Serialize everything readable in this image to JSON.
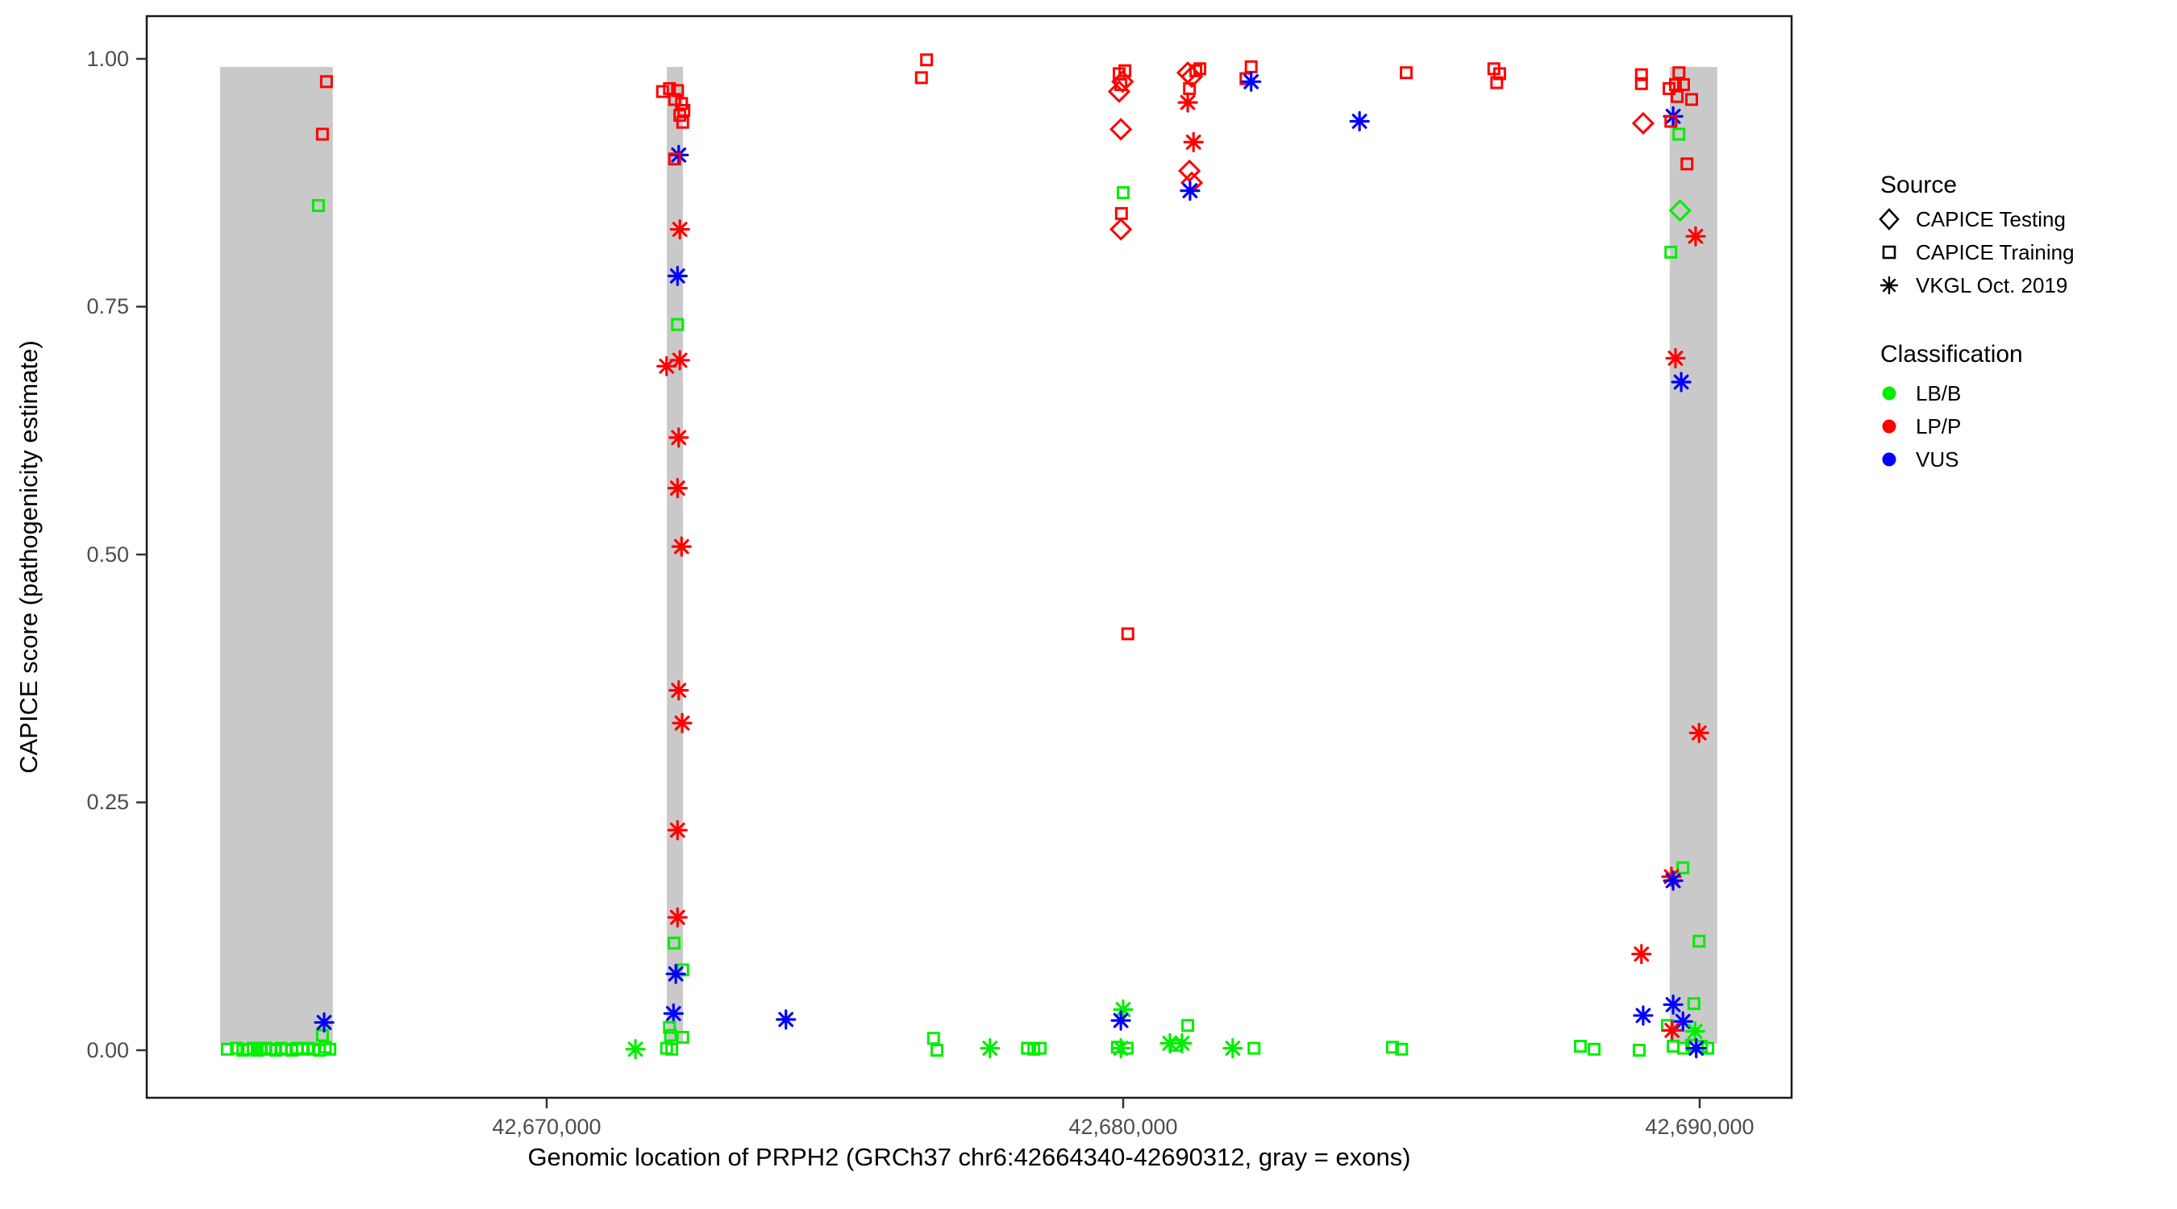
{
  "figure": {
    "y_axis": {
      "title": "CAPICE score (pathogenicity estimate)",
      "ticks": [
        "1.00",
        "0.75",
        "0.50",
        "0.25",
        "0.00"
      ],
      "tick_values": [
        1.0,
        0.75,
        0.5,
        0.25,
        0.0
      ]
    },
    "x_axis": {
      "title": "Genomic location of PRPH2 (GRCh37 chr6:42664340-42690312, gray = exons)",
      "ticks": [
        "42,670,000",
        "42,680,000",
        "42,690,000"
      ],
      "tick_values": [
        42670000,
        42680000,
        42690000
      ]
    },
    "legend": {
      "source_title": "Source",
      "source_items": [
        {
          "label": "CAPICE Testing",
          "shape": "diamond"
        },
        {
          "label": "CAPICE Training",
          "shape": "square"
        },
        {
          "label": "VKGL Oct. 2019",
          "shape": "asterisk"
        }
      ],
      "classification_title": "Classification",
      "classification_items": [
        {
          "label": "LB/B",
          "color": "#00EE00"
        },
        {
          "label": "LP/P",
          "color": "#FF0000"
        },
        {
          "label": "VUS",
          "color": "#0000FF"
        }
      ]
    }
  },
  "chart_data": {
    "type": "scatter",
    "xlabel": "Genomic location of PRPH2 (GRCh37 chr6:42664340-42690312, gray = exons)",
    "ylabel": "CAPICE score (pathogenicity estimate)",
    "xlim": [
      42663060,
      42691600
    ],
    "ylim": [
      -0.05,
      1.05
    ],
    "grid": false,
    "legend_position": "right",
    "shape_map": {
      "testing": "diamond",
      "training": "square",
      "vkgl": "asterisk"
    },
    "shape_labels": {
      "testing": "CAPICE Testing",
      "training": "CAPICE Training",
      "vkgl": "VKGL Oct. 2019"
    },
    "color_map": {
      "LB/B": "#00EE00",
      "LP/P": "#FF0000",
      "VUS": "#0000FF"
    },
    "exon_color": "#C9C9C9",
    "exons_bp": [
      [
        42664335,
        42666290
      ],
      [
        42672085,
        42672365
      ],
      [
        42689480,
        42690305
      ]
    ],
    "points_format": [
      "source",
      "classification",
      "position_bp",
      "capice_score"
    ],
    "points": [
      [
        "training",
        "LB/B",
        42664460,
        0.001
      ],
      [
        "training",
        "LB/B",
        42664620,
        0.002
      ],
      [
        "training",
        "LB/B",
        42664730,
        0.0
      ],
      [
        "training",
        "LB/B",
        42664830,
        0.001
      ],
      [
        "training",
        "LB/B",
        42664910,
        0.002
      ],
      [
        "training",
        "LB/B",
        42664980,
        0.0
      ],
      [
        "training",
        "LB/B",
        42665050,
        0.001
      ],
      [
        "training",
        "LB/B",
        42665130,
        0.002
      ],
      [
        "training",
        "LB/B",
        42665220,
        0.001
      ],
      [
        "training",
        "LB/B",
        42665300,
        0.0
      ],
      [
        "training",
        "LB/B",
        42665390,
        0.002
      ],
      [
        "training",
        "LB/B",
        42665470,
        0.001
      ],
      [
        "training",
        "LB/B",
        42665580,
        0.0
      ],
      [
        "training",
        "LB/B",
        42665670,
        0.002
      ],
      [
        "training",
        "LB/B",
        42665760,
        0.001
      ],
      [
        "training",
        "LB/B",
        42665860,
        0.002
      ],
      [
        "training",
        "LB/B",
        42665960,
        0.001
      ],
      [
        "training",
        "LB/B",
        42666060,
        0.0
      ],
      [
        "training",
        "LB/B",
        42666160,
        0.003
      ],
      [
        "training",
        "LB/B",
        42666240,
        0.001
      ],
      [
        "training",
        "LP/P",
        42666180,
        0.977
      ],
      [
        "training",
        "LP/P",
        42666110,
        0.924
      ],
      [
        "training",
        "LB/B",
        42666040,
        0.852
      ],
      [
        "training",
        "LB/B",
        42666110,
        0.015
      ],
      [
        "vkgl",
        "VUS",
        42666140,
        0.028
      ],
      [
        "vkgl",
        "LB/B",
        42671540,
        0.001
      ],
      [
        "training",
        "LP/P",
        42672130,
        0.97
      ],
      [
        "training",
        "LP/P",
        42672010,
        0.967
      ],
      [
        "training",
        "LP/P",
        42672270,
        0.968
      ],
      [
        "training",
        "LP/P",
        42672220,
        0.959
      ],
      [
        "training",
        "LP/P",
        42672340,
        0.955
      ],
      [
        "training",
        "LP/P",
        42672380,
        0.948
      ],
      [
        "training",
        "LP/P",
        42672310,
        0.943
      ],
      [
        "training",
        "LP/P",
        42672360,
        0.936
      ],
      [
        "vkgl",
        "VUS",
        42672290,
        0.903
      ],
      [
        "training",
        "LP/P",
        42672220,
        0.899
      ],
      [
        "vkgl",
        "LP/P",
        42672310,
        0.828
      ],
      [
        "vkgl",
        "VUS",
        42672270,
        0.781
      ],
      [
        "training",
        "LB/B",
        42672270,
        0.732
      ],
      [
        "vkgl",
        "LP/P",
        42672310,
        0.696
      ],
      [
        "vkgl",
        "LP/P",
        42672080,
        0.69
      ],
      [
        "vkgl",
        "LP/P",
        42672290,
        0.618
      ],
      [
        "vkgl",
        "LP/P",
        42672270,
        0.567
      ],
      [
        "vkgl",
        "LP/P",
        42672340,
        0.508
      ],
      [
        "vkgl",
        "LP/P",
        42672290,
        0.363
      ],
      [
        "vkgl",
        "LP/P",
        42672350,
        0.33
      ],
      [
        "vkgl",
        "LP/P",
        42672270,
        0.222
      ],
      [
        "vkgl",
        "LP/P",
        42672270,
        0.134
      ],
      [
        "training",
        "LB/B",
        42672210,
        0.108
      ],
      [
        "training",
        "LB/B",
        42672360,
        0.081
      ],
      [
        "vkgl",
        "VUS",
        42672240,
        0.077
      ],
      [
        "vkgl",
        "VUS",
        42672200,
        0.037
      ],
      [
        "training",
        "LB/B",
        42672130,
        0.023
      ],
      [
        "training",
        "LB/B",
        42672150,
        0.015
      ],
      [
        "training",
        "LB/B",
        42672360,
        0.013
      ],
      [
        "training",
        "LB/B",
        42672080,
        0.002
      ],
      [
        "training",
        "LB/B",
        42672170,
        0.001
      ],
      [
        "vkgl",
        "VUS",
        42674150,
        0.031
      ],
      [
        "training",
        "LP/P",
        42676590,
        0.999
      ],
      [
        "training",
        "LP/P",
        42676500,
        0.981
      ],
      [
        "training",
        "LB/B",
        42676710,
        0.012
      ],
      [
        "training",
        "LB/B",
        42676770,
        0.0
      ],
      [
        "vkgl",
        "LB/B",
        42677690,
        0.002
      ],
      [
        "training",
        "LB/B",
        42678340,
        0.002
      ],
      [
        "training",
        "LB/B",
        42678450,
        0.001
      ],
      [
        "training",
        "LB/B",
        42678560,
        0.002
      ],
      [
        "training",
        "LP/P",
        42680030,
        0.988
      ],
      [
        "training",
        "LP/P",
        42679930,
        0.985
      ],
      [
        "testing",
        "LP/P",
        42679990,
        0.977
      ],
      [
        "training",
        "LP/P",
        42679960,
        0.974
      ],
      [
        "testing",
        "LP/P",
        42679930,
        0.967
      ],
      [
        "testing",
        "LP/P",
        42679960,
        0.929
      ],
      [
        "training",
        "LB/B",
        42680000,
        0.865
      ],
      [
        "training",
        "LP/P",
        42679970,
        0.844
      ],
      [
        "testing",
        "LP/P",
        42679960,
        0.828
      ],
      [
        "training",
        "LP/P",
        42680080,
        0.42
      ],
      [
        "vkgl",
        "LB/B",
        42680000,
        0.041
      ],
      [
        "vkgl",
        "VUS",
        42679960,
        0.03
      ],
      [
        "vkgl",
        "LB/B",
        42679960,
        0.002
      ],
      [
        "training",
        "LB/B",
        42679900,
        0.003
      ],
      [
        "training",
        "LB/B",
        42680070,
        0.002
      ],
      [
        "testing",
        "LP/P",
        42681120,
        0.986
      ],
      [
        "training",
        "LP/P",
        42681260,
        0.988
      ],
      [
        "training",
        "LP/P",
        42681330,
        0.99
      ],
      [
        "testing",
        "LP/P",
        42681190,
        0.982
      ],
      [
        "training",
        "LP/P",
        42681150,
        0.97
      ],
      [
        "vkgl",
        "LP/P",
        42681120,
        0.956
      ],
      [
        "vkgl",
        "LP/P",
        42681220,
        0.916
      ],
      [
        "testing",
        "LP/P",
        42681150,
        0.887
      ],
      [
        "testing",
        "LP/P",
        42681190,
        0.875
      ],
      [
        "vkgl",
        "VUS",
        42681160,
        0.867
      ],
      [
        "vkgl",
        "LB/B",
        42680810,
        0.007
      ],
      [
        "training",
        "LB/B",
        42680920,
        0.005
      ],
      [
        "vkgl",
        "LB/B",
        42681020,
        0.007
      ],
      [
        "training",
        "LB/B",
        42681120,
        0.025
      ],
      [
        "training",
        "LP/P",
        42682220,
        0.992
      ],
      [
        "training",
        "LP/P",
        42682130,
        0.98
      ],
      [
        "vkgl",
        "VUS",
        42682220,
        0.977
      ],
      [
        "vkgl",
        "LB/B",
        42681900,
        0.002
      ],
      [
        "training",
        "LB/B",
        42682270,
        0.002
      ],
      [
        "vkgl",
        "VUS",
        42684100,
        0.937
      ],
      [
        "training",
        "LP/P",
        42684910,
        0.986
      ],
      [
        "training",
        "LB/B",
        42684670,
        0.003
      ],
      [
        "training",
        "LB/B",
        42684830,
        0.001
      ],
      [
        "training",
        "LP/P",
        42686430,
        0.99
      ],
      [
        "training",
        "LP/P",
        42686530,
        0.985
      ],
      [
        "training",
        "LP/P",
        42686480,
        0.976
      ],
      [
        "training",
        "LB/B",
        42687930,
        0.004
      ],
      [
        "training",
        "LB/B",
        42688170,
        0.001
      ],
      [
        "training",
        "LP/P",
        42688990,
        0.984
      ],
      [
        "training",
        "LP/P",
        42688990,
        0.975
      ],
      [
        "testing",
        "LP/P",
        42689020,
        0.935
      ],
      [
        "vkgl",
        "LP/P",
        42688990,
        0.097
      ],
      [
        "vkgl",
        "VUS",
        42689020,
        0.035
      ],
      [
        "training",
        "LB/B",
        42688950,
        0.0
      ],
      [
        "training",
        "LP/P",
        42689640,
        0.986
      ],
      [
        "training",
        "LP/P",
        42689580,
        0.974
      ],
      [
        "training",
        "LP/P",
        42689720,
        0.974
      ],
      [
        "training",
        "LP/P",
        42689470,
        0.97
      ],
      [
        "training",
        "LP/P",
        42689610,
        0.962
      ],
      [
        "training",
        "LP/P",
        42689860,
        0.959
      ],
      [
        "vkgl",
        "VUS",
        42689540,
        0.942
      ],
      [
        "training",
        "LP/P",
        42689500,
        0.937
      ],
      [
        "training",
        "LB/B",
        42689640,
        0.924
      ],
      [
        "training",
        "LP/P",
        42689780,
        0.894
      ],
      [
        "testing",
        "LB/B",
        42689660,
        0.847
      ],
      [
        "vkgl",
        "LP/P",
        42689930,
        0.821
      ],
      [
        "training",
        "LB/B",
        42689500,
        0.805
      ],
      [
        "vkgl",
        "LP/P",
        42689580,
        0.698
      ],
      [
        "vkgl",
        "VUS",
        42689680,
        0.674
      ],
      [
        "vkgl",
        "LP/P",
        42689990,
        0.32
      ],
      [
        "training",
        "LB/B",
        42689710,
        0.184
      ],
      [
        "vkgl",
        "LP/P",
        42689510,
        0.175
      ],
      [
        "vkgl",
        "VUS",
        42689540,
        0.171
      ],
      [
        "training",
        "LB/B",
        42689990,
        0.11
      ],
      [
        "training",
        "LB/B",
        42689900,
        0.047
      ],
      [
        "vkgl",
        "VUS",
        42689540,
        0.046
      ],
      [
        "vkgl",
        "VUS",
        42689710,
        0.029
      ],
      [
        "training",
        "LB/B",
        42689440,
        0.025
      ],
      [
        "vkgl",
        "LP/P",
        42689520,
        0.02
      ],
      [
        "vkgl",
        "LB/B",
        42689920,
        0.019
      ],
      [
        "training",
        "LB/B",
        42689540,
        0.004
      ],
      [
        "training",
        "LB/B",
        42689720,
        0.002
      ],
      [
        "training",
        "LB/B",
        42689860,
        0.005
      ],
      [
        "training",
        "LB/B",
        42690030,
        0.004
      ],
      [
        "training",
        "LB/B",
        42690140,
        0.002
      ],
      [
        "vkgl",
        "VUS",
        42689940,
        0.002
      ]
    ]
  }
}
